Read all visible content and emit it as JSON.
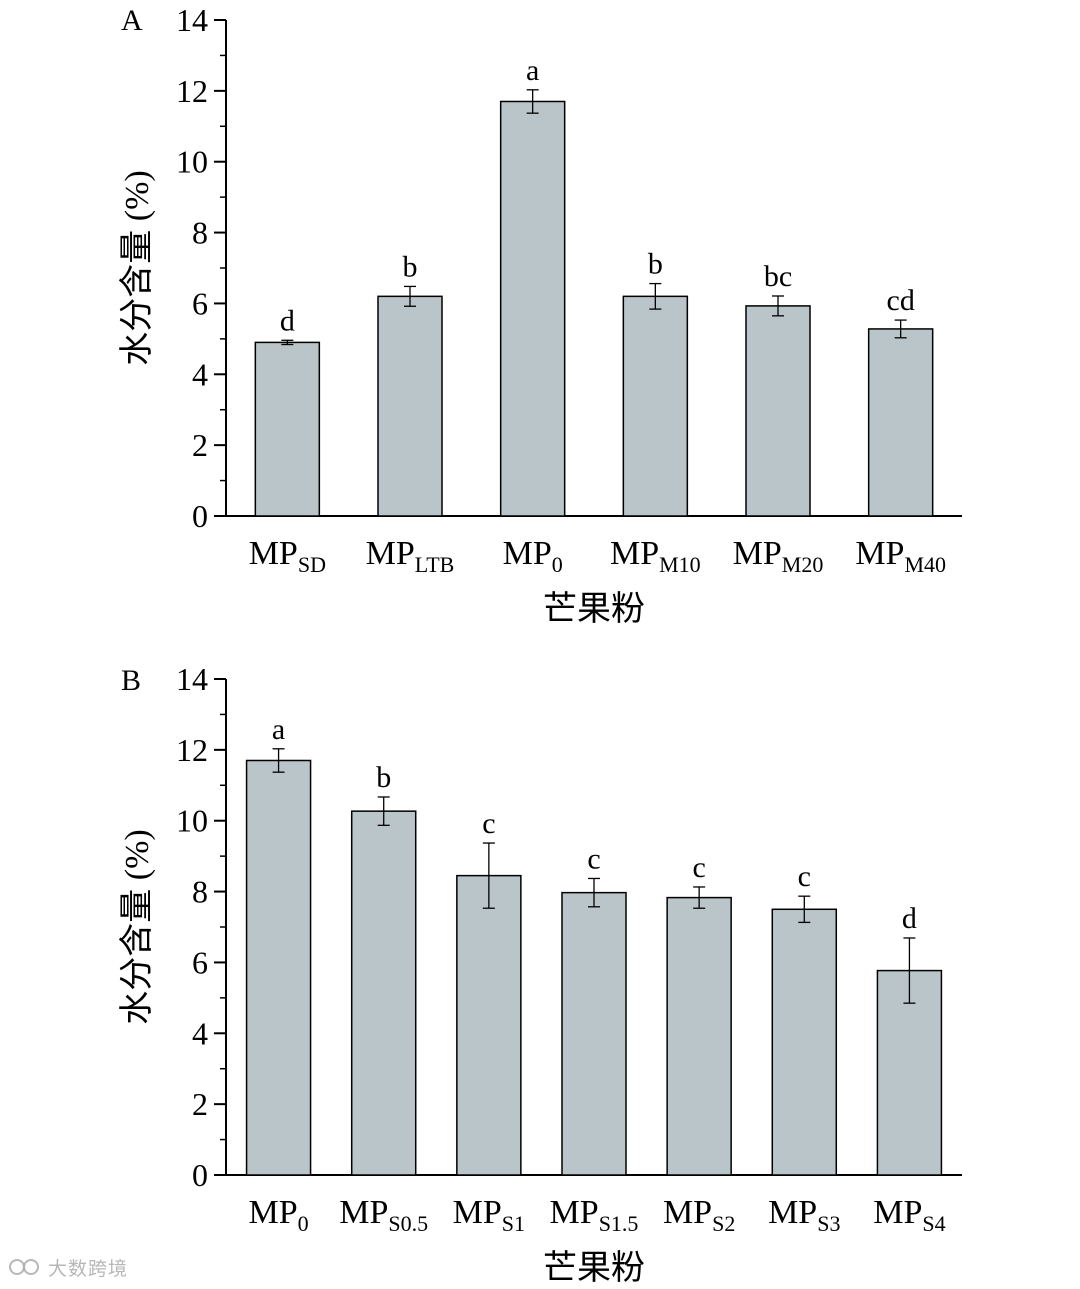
{
  "colors": {
    "bar_fill": "#b9c5c8",
    "bar_stroke": "#000000",
    "axis": "#000000"
  },
  "chart_data": [
    {
      "type": "bar",
      "panel_label": "A",
      "ylabel": "水分含量 (%)",
      "xlabel": "芒果粉",
      "ylim": [
        0,
        14
      ],
      "yticks": [
        "0",
        "2",
        "4",
        "6",
        "8",
        "10",
        "12",
        "14"
      ],
      "categories": [
        {
          "main": "MP",
          "sub": "SD"
        },
        {
          "main": "MP",
          "sub": "LTB"
        },
        {
          "main": "MP",
          "sub": "0"
        },
        {
          "main": "MP",
          "sub": "M10"
        },
        {
          "main": "MP",
          "sub": "M20"
        },
        {
          "main": "MP",
          "sub": "M40"
        }
      ],
      "values": [
        4.9,
        6.2,
        11.7,
        6.2,
        5.93,
        5.28
      ],
      "errors": [
        0.06,
        0.28,
        0.33,
        0.36,
        0.28,
        0.25
      ],
      "letters": [
        "d",
        "b",
        "a",
        "b",
        "bc",
        "cd"
      ]
    },
    {
      "type": "bar",
      "panel_label": "B",
      "ylabel": "水分含量 (%)",
      "xlabel": "芒果粉",
      "ylim": [
        0,
        14
      ],
      "yticks": [
        "0",
        "2",
        "4",
        "6",
        "8",
        "10",
        "12",
        "14"
      ],
      "categories": [
        {
          "main": "MP",
          "sub": "0"
        },
        {
          "main": "MP",
          "sub": "S0.5"
        },
        {
          "main": "MP",
          "sub": "S1"
        },
        {
          "main": "MP",
          "sub": "S1.5"
        },
        {
          "main": "MP",
          "sub": "S2"
        },
        {
          "main": "MP",
          "sub": "S3"
        },
        {
          "main": "MP",
          "sub": "S4"
        }
      ],
      "values": [
        11.7,
        10.27,
        8.45,
        7.97,
        7.83,
        7.5,
        5.77
      ],
      "errors": [
        0.33,
        0.4,
        0.92,
        0.4,
        0.3,
        0.37,
        0.92
      ],
      "letters": [
        "a",
        "b",
        "c",
        "c",
        "c",
        "c",
        "d"
      ]
    }
  ],
  "watermark": {
    "text": "大数跨境",
    "icon": "brand-logo-icon"
  }
}
